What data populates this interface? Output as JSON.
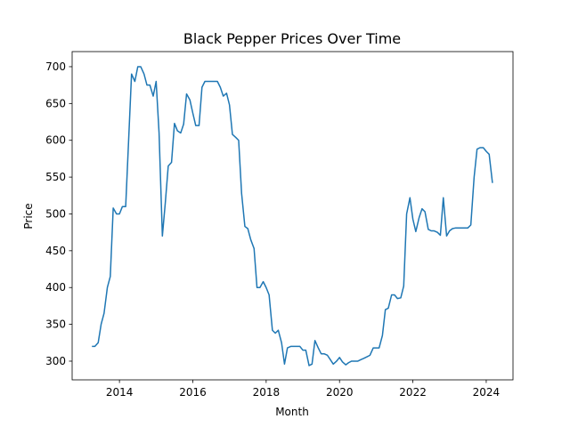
{
  "chart_data": {
    "type": "line",
    "title": "Black Pepper Prices Over Time",
    "x_label": "Month",
    "y_label": "Price",
    "color": "#1f77b4",
    "grid": false,
    "x": [
      2013.25,
      2013.33,
      2013.42,
      2013.5,
      2013.58,
      2013.67,
      2013.75,
      2013.83,
      2013.92,
      2014,
      2014.08,
      2014.17,
      2014.25,
      2014.33,
      2014.42,
      2014.5,
      2014.58,
      2014.67,
      2014.75,
      2014.83,
      2014.92,
      2015,
      2015.08,
      2015.17,
      2015.25,
      2015.33,
      2015.42,
      2015.5,
      2015.58,
      2015.67,
      2015.75,
      2015.83,
      2015.92,
      2016,
      2016.08,
      2016.17,
      2016.25,
      2016.33,
      2016.42,
      2016.5,
      2016.58,
      2016.67,
      2016.75,
      2016.83,
      2016.92,
      2017,
      2017.08,
      2017.17,
      2017.25,
      2017.33,
      2017.42,
      2017.5,
      2017.58,
      2017.67,
      2017.75,
      2017.83,
      2017.92,
      2018,
      2018.08,
      2018.17,
      2018.25,
      2018.33,
      2018.42,
      2018.5,
      2018.58,
      2018.67,
      2018.75,
      2018.83,
      2018.92,
      2019,
      2019.08,
      2019.17,
      2019.25,
      2019.33,
      2019.42,
      2019.5,
      2019.58,
      2019.67,
      2019.75,
      2019.83,
      2019.92,
      2020,
      2020.08,
      2020.17,
      2020.25,
      2020.33,
      2020.42,
      2020.5,
      2020.58,
      2020.67,
      2020.75,
      2020.83,
      2020.92,
      2021,
      2021.08,
      2021.17,
      2021.25,
      2021.33,
      2021.42,
      2021.5,
      2021.58,
      2021.67,
      2021.75,
      2021.83,
      2021.92,
      2022,
      2022.08,
      2022.17,
      2022.25,
      2022.33,
      2022.42,
      2022.5,
      2022.58,
      2022.67,
      2022.75,
      2022.83,
      2022.92,
      2023,
      2023.08,
      2023.17,
      2023.25,
      2023.33,
      2023.42,
      2023.5,
      2023.58,
      2023.67,
      2023.75,
      2023.83,
      2023.92,
      2024,
      2024.08,
      2024.17
    ],
    "values": [
      320,
      320,
      325,
      350,
      365,
      400,
      415,
      508,
      500,
      500,
      510,
      510,
      600,
      690,
      680,
      700,
      700,
      690,
      675,
      675,
      660,
      680,
      610,
      470,
      515,
      565,
      570,
      623,
      613,
      610,
      622,
      663,
      655,
      637,
      620,
      620,
      672,
      680,
      680,
      680,
      680,
      680,
      672,
      660,
      664,
      648,
      608,
      604,
      600,
      528,
      483,
      480,
      465,
      453,
      400,
      400,
      408,
      400,
      390,
      342,
      338,
      342,
      325,
      296,
      318,
      320,
      320,
      320,
      320,
      315,
      315,
      294,
      296,
      328,
      318,
      310,
      310,
      308,
      302,
      296,
      300,
      305,
      299,
      295,
      298,
      300,
      300,
      300,
      302,
      304,
      306,
      308,
      318,
      318,
      318,
      335,
      370,
      372,
      390,
      390,
      385,
      386,
      402,
      500,
      522,
      493,
      476,
      495,
      507,
      503,
      479,
      477,
      477,
      475,
      471,
      522,
      470,
      477,
      480,
      481,
      481,
      481,
      481,
      481,
      485,
      550,
      588,
      590,
      590,
      585,
      581,
      542
    ],
    "xlim": [
      2012.71,
      2024.73
    ],
    "ylim": [
      274.6,
      720.5
    ],
    "xticks": [
      2014,
      2016,
      2018,
      2020,
      2022,
      2024
    ],
    "yticks": [
      300,
      350,
      400,
      450,
      500,
      550,
      600,
      650,
      700
    ]
  }
}
